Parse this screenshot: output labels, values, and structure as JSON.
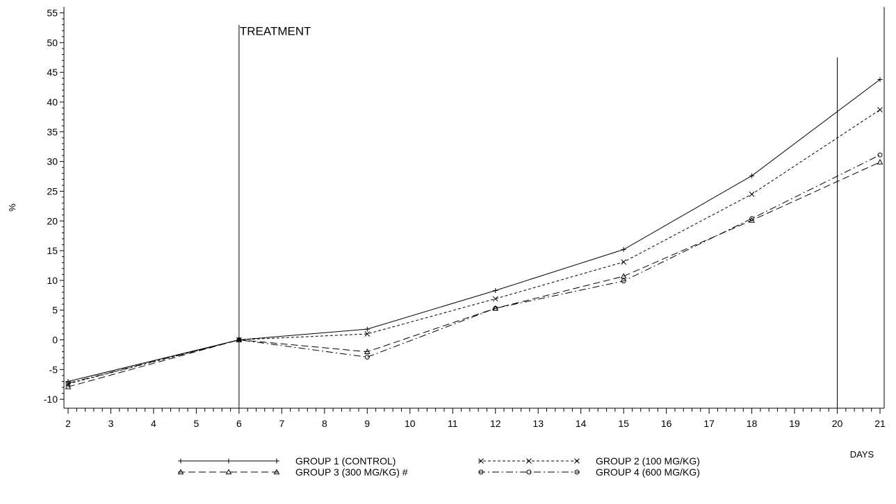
{
  "chart_data": {
    "type": "line",
    "title": "",
    "xlabel": "DAYS",
    "ylabel": "%",
    "x_ticks": [
      2,
      3,
      4,
      5,
      6,
      7,
      8,
      9,
      10,
      11,
      12,
      13,
      14,
      15,
      16,
      17,
      18,
      19,
      20,
      21
    ],
    "y_ticks": [
      -10,
      -5,
      0,
      5,
      10,
      15,
      20,
      25,
      30,
      35,
      40,
      45,
      50,
      55
    ],
    "xlim": [
      2,
      21
    ],
    "ylim": [
      -11.5,
      56
    ],
    "grid": false,
    "legend_position": "bottom",
    "reference_lines": [
      {
        "x": 6,
        "y_top": 53,
        "label": "TREATMENT"
      },
      {
        "x": 20,
        "y_top": 47.5,
        "label": ""
      }
    ],
    "series": [
      {
        "name": "GROUP 1 (CONTROL)",
        "marker": "plus",
        "dash": "solid",
        "x": [
          2,
          6,
          9,
          12,
          15,
          18,
          21
        ],
        "y": [
          -7.0,
          0.0,
          1.8,
          8.3,
          15.2,
          27.6,
          43.8
        ]
      },
      {
        "name": "GROUP 2 (100 MG/KG)",
        "marker": "x",
        "dash": "short-dash",
        "x": [
          2,
          6,
          9,
          12,
          15,
          18,
          21
        ],
        "y": [
          -7.4,
          0.0,
          1.0,
          6.9,
          13.1,
          24.5,
          38.7
        ]
      },
      {
        "name": "GROUP 3 (300 MG/KG) #",
        "marker": "triangle",
        "dash": "long-dash",
        "x": [
          2,
          6,
          9,
          12,
          15,
          18,
          21
        ],
        "y": [
          -7.9,
          0.0,
          -2.0,
          5.3,
          10.7,
          20.1,
          29.9
        ]
      },
      {
        "name": "GROUP 4 (600 MG/KG)",
        "marker": "circle",
        "dash": "dash-dot",
        "x": [
          2,
          6,
          9,
          12,
          15,
          18,
          21
        ],
        "y": [
          -7.3,
          0.0,
          -2.9,
          5.3,
          9.9,
          20.4,
          31.1
        ]
      }
    ]
  }
}
